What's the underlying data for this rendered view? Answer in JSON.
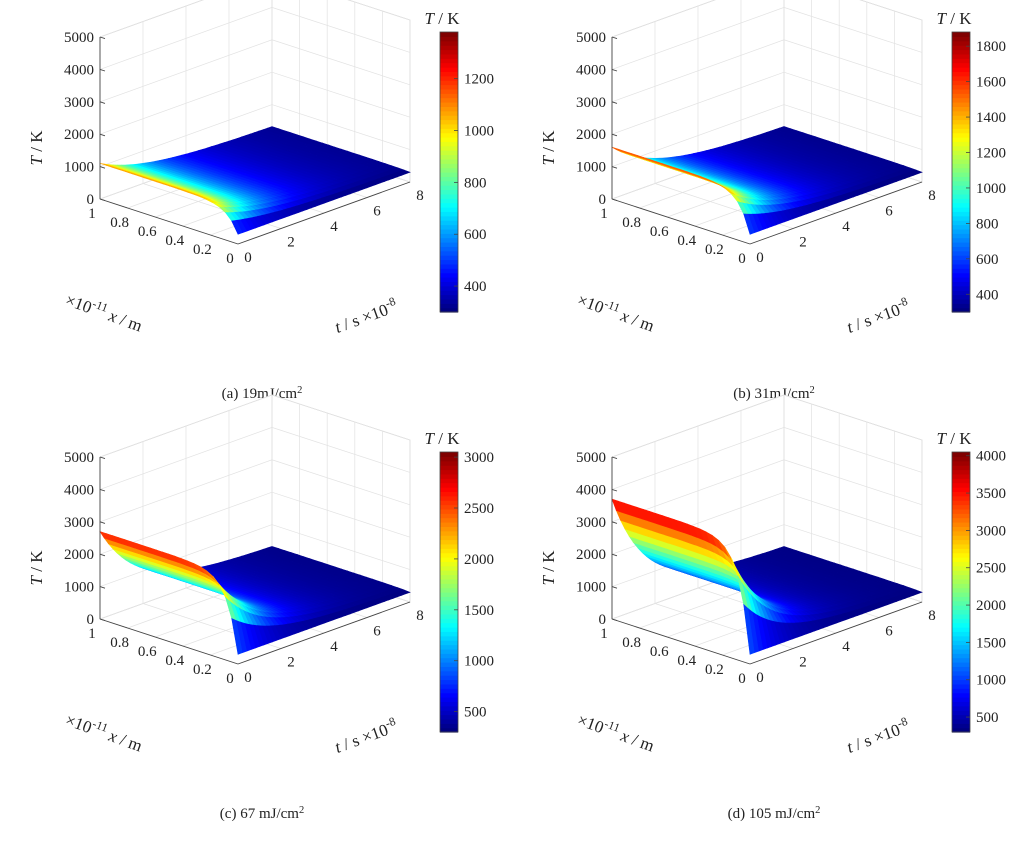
{
  "chart_data": [
    {
      "type": "surface3d",
      "caption_prefix": "(a) 19mJ/cm",
      "caption_sup": "2",
      "zlabel_italic": "T",
      "zlabel_rest": " / K",
      "xlabel_italic": "x",
      "xlabel_rest": " / m",
      "xexp": "×10",
      "xexp_sup": "-11",
      "tlabel_italic": "t",
      "tlabel_rest": " / s ",
      "texp": "×10",
      "texp_sup": "-8",
      "cbar_title_italic": "T",
      "cbar_title_rest": " / K",
      "zlim": [
        0,
        5000
      ],
      "zticks": [
        0,
        1000,
        2000,
        3000,
        4000,
        5000
      ],
      "xlim": [
        0,
        1
      ],
      "xticks": [
        "0",
        "0.2",
        "0.4",
        "0.6",
        "0.8",
        "1"
      ],
      "tlim": [
        0,
        8
      ],
      "tticks": [
        "0",
        "2",
        "4",
        "6",
        "8"
      ],
      "cbar_range": [
        300,
        1380
      ],
      "cbar_ticks": [
        400,
        600,
        800,
        1000,
        1200
      ],
      "surface": {
        "t_min": 300,
        "t_peak": 1100,
        "t_edge_x0": 300,
        "decay_t": 2.2,
        "edge_width": 0.08
      }
    },
    {
      "type": "surface3d",
      "caption_prefix": "(b) 31mJ/cm",
      "caption_sup": "2",
      "zlabel_italic": "T",
      "zlabel_rest": " / K",
      "xlabel_italic": "x",
      "xlabel_rest": " / m",
      "xexp": "×10",
      "xexp_sup": "-11",
      "tlabel_italic": "t",
      "tlabel_rest": " / s ",
      "texp": "×10",
      "texp_sup": "-8",
      "cbar_title_italic": "T",
      "cbar_title_rest": " / K",
      "zlim": [
        0,
        5000
      ],
      "zticks": [
        0,
        1000,
        2000,
        3000,
        4000,
        5000
      ],
      "xlim": [
        0,
        1
      ],
      "xticks": [
        "0",
        "0.2",
        "0.4",
        "0.6",
        "0.8",
        "1"
      ],
      "tlim": [
        0,
        8
      ],
      "tticks": [
        "0",
        "2",
        "4",
        "6",
        "8"
      ],
      "cbar_range": [
        300,
        1880
      ],
      "cbar_ticks": [
        400,
        600,
        800,
        1000,
        1200,
        1400,
        1600,
        1800
      ],
      "surface": {
        "t_min": 300,
        "t_peak": 1600,
        "t_edge_x0": 300,
        "decay_t": 2.0,
        "edge_width": 0.08
      }
    },
    {
      "type": "surface3d",
      "caption_prefix": "(c) 67 mJ/cm",
      "caption_sup": "2",
      "zlabel_italic": "T",
      "zlabel_rest": " / K",
      "xlabel_italic": "x",
      "xlabel_rest": " / m",
      "xexp": "×10",
      "xexp_sup": "-11",
      "tlabel_italic": "t",
      "tlabel_rest": " / s ",
      "texp": "×10",
      "texp_sup": "-8",
      "cbar_title_italic": "T",
      "cbar_title_rest": " / K",
      "zlim": [
        0,
        5000
      ],
      "zticks": [
        0,
        1000,
        2000,
        3000,
        4000,
        5000
      ],
      "xlim": [
        0,
        1
      ],
      "xticks": [
        "0",
        "0.2",
        "0.4",
        "0.6",
        "0.8",
        "1"
      ],
      "tlim": [
        0,
        8
      ],
      "tticks": [
        "0",
        "2",
        "4",
        "6",
        "8"
      ],
      "cbar_range": [
        300,
        3050
      ],
      "cbar_ticks": [
        500,
        1000,
        1500,
        2000,
        2500,
        3000
      ],
      "surface": {
        "t_min": 300,
        "t_peak": 2700,
        "t_edge_x0": 300,
        "decay_t": 1.8,
        "edge_width": 0.08
      }
    },
    {
      "type": "surface3d",
      "caption_prefix": "(d) 105 mJ/cm",
      "caption_sup": "2",
      "zlabel_italic": "T",
      "zlabel_rest": " / K",
      "xlabel_italic": "x",
      "xlabel_rest": " / m",
      "xexp": "×10",
      "xexp_sup": "-11",
      "tlabel_italic": "t",
      "tlabel_rest": " / s ",
      "texp": "×10",
      "texp_sup": "-8",
      "cbar_title_italic": "T",
      "cbar_title_rest": " / K",
      "zlim": [
        0,
        5000
      ],
      "zticks": [
        0,
        1000,
        2000,
        3000,
        4000,
        5000
      ],
      "xlim": [
        0,
        1
      ],
      "xticks": [
        "0",
        "0.2",
        "0.4",
        "0.6",
        "0.8",
        "1"
      ],
      "tlim": [
        0,
        8
      ],
      "tticks": [
        "0",
        "2",
        "4",
        "6",
        "8"
      ],
      "cbar_range": [
        300,
        4050
      ],
      "cbar_ticks": [
        500,
        1000,
        1500,
        2000,
        2500,
        3000,
        3500,
        4000
      ],
      "surface": {
        "t_min": 300,
        "t_peak": 3700,
        "t_edge_x0": 300,
        "decay_t": 1.6,
        "edge_width": 0.08
      }
    }
  ]
}
